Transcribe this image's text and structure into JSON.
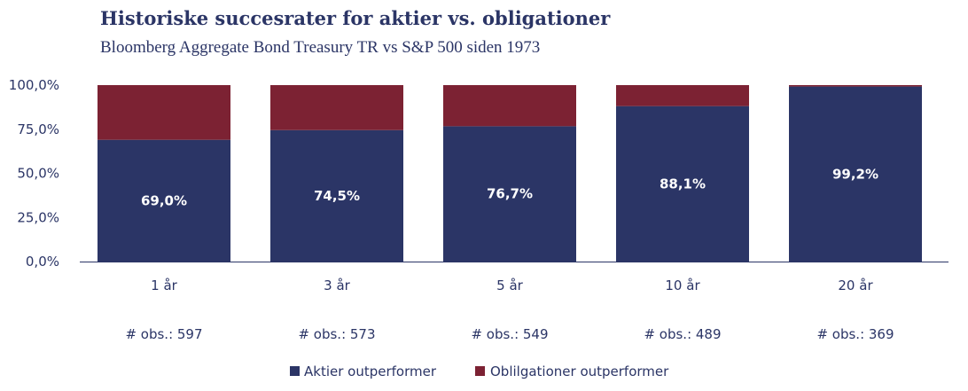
{
  "chart_data": {
    "type": "bar",
    "title": "Historiske succesrater for aktier vs. obligationer",
    "subtitle": "Bloomberg Aggregate Bond Treasury TR vs S&P 500 siden 1973",
    "categories": [
      "1 år",
      "3 år",
      "5 år",
      "10 år",
      "20 år"
    ],
    "observations": [
      "# obs.: 597",
      "# obs.: 573",
      "# obs.: 549",
      "# obs.: 489",
      "# obs.: 369"
    ],
    "series": [
      {
        "name": "Aktier outperformer",
        "values": [
          69.0,
          74.5,
          76.7,
          88.1,
          99.2
        ],
        "data_labels": [
          "69,0%",
          "74,5%",
          "76,7%",
          "88,1%",
          "99,2%"
        ],
        "color": "#2b3566"
      },
      {
        "name": "Oblilgationer outperformer",
        "values": [
          31.0,
          25.5,
          23.3,
          11.9,
          0.8
        ],
        "color": "#7c2233"
      }
    ],
    "stacked": true,
    "ylim": [
      0,
      100
    ],
    "yticks": [
      "0,0%",
      "25,0%",
      "50,0%",
      "75,0%",
      "100,0%"
    ],
    "grid": false,
    "legend_position": "bottom"
  }
}
